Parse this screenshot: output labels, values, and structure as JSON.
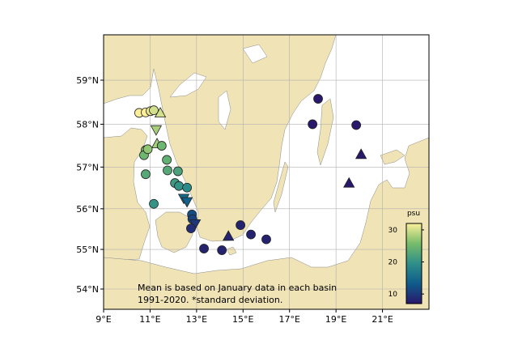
{
  "chart_data": {
    "type": "scatter",
    "projection": "mercator",
    "xlim": [
      9,
      23
    ],
    "ylim": [
      53.48,
      60.0
    ],
    "xticks": [
      {
        "value": 9,
        "label": "9°E"
      },
      {
        "value": 11,
        "label": "11°E"
      },
      {
        "value": 13,
        "label": "13°E"
      },
      {
        "value": 15,
        "label": "15°E"
      },
      {
        "value": 17,
        "label": "17°E"
      },
      {
        "value": 19,
        "label": "19°E"
      },
      {
        "value": 21,
        "label": "21°E"
      }
    ],
    "yticks": [
      {
        "value": 54,
        "label": "54°N"
      },
      {
        "value": 55,
        "label": "55°N"
      },
      {
        "value": 56,
        "label": "56°N"
      },
      {
        "value": 57,
        "label": "57°N"
      },
      {
        "value": 58,
        "label": "58°N"
      },
      {
        "value": 59,
        "label": "59°N"
      }
    ],
    "grid": true,
    "annotation": [
      "Mean is based on January data in each basin",
      "1991-2020. *standard deviation."
    ],
    "colorbar_label": "psu",
    "clim": [
      7,
      32
    ],
    "cticks": [
      10,
      20,
      30
    ],
    "colormap": [
      "#29186b",
      "#0f5b8b",
      "#2f8f88",
      "#76bc6a",
      "#fdef9a"
    ],
    "lon": [
      10.53,
      10.81,
      11.02,
      11.16,
      11.44,
      11.26,
      11.3,
      11.5,
      10.81,
      10.74,
      10.9,
      11.72,
      11.75,
      12.2,
      10.81,
      12.07,
      12.24,
      12.59,
      11.16,
      12.45,
      12.59,
      12.8,
      12.82,
      12.94,
      12.76,
      13.32,
      14.09,
      14.37,
      14.89,
      15.34,
      16.0,
      18.23,
      17.99,
      19.87,
      20.08,
      19.56
    ],
    "lat": [
      58.26,
      58.27,
      58.3,
      58.32,
      58.26,
      57.87,
      57.55,
      57.5,
      57.4,
      57.28,
      57.42,
      57.17,
      56.92,
      56.9,
      56.83,
      56.62,
      56.55,
      56.51,
      56.12,
      56.25,
      56.17,
      55.86,
      55.75,
      55.63,
      55.52,
      55.02,
      54.98,
      55.33,
      55.6,
      55.37,
      55.25,
      58.58,
      58.0,
      57.98,
      57.3,
      56.62
    ],
    "values": [
      33,
      32,
      31,
      30,
      30,
      28,
      28,
      25,
      26,
      25,
      27,
      24,
      23,
      22,
      23,
      21,
      20,
      19,
      20,
      15,
      14,
      12,
      11,
      10,
      9,
      8,
      8,
      8,
      8,
      8,
      8,
      7,
      7,
      7,
      7,
      7
    ],
    "markers": [
      "o",
      "o",
      "o",
      "o",
      "^",
      "v",
      "^",
      "o",
      "o",
      "o",
      "o",
      "o",
      "o",
      "o",
      "o",
      "o",
      "o",
      "o",
      "o",
      "v",
      "v",
      "o",
      "o",
      "v",
      "o",
      "o",
      "o",
      "^",
      "o",
      "o",
      "o",
      "o",
      "o",
      "o",
      "^",
      "^"
    ]
  }
}
